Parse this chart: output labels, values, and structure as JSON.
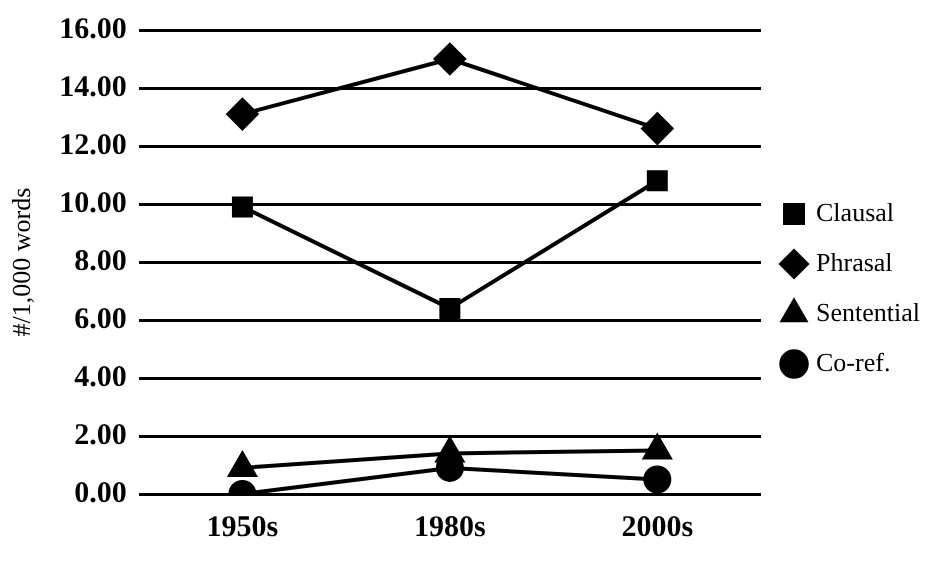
{
  "chart_data": {
    "type": "line",
    "ylabel": "#/1,000 words",
    "categories": [
      "1950s",
      "1980s",
      "2000s"
    ],
    "series": [
      {
        "name": "Clausal",
        "color": "#000000",
        "marker": "square",
        "values": [
          9.9,
          6.4,
          10.8
        ]
      },
      {
        "name": "Phrasal",
        "color": "#000000",
        "marker": "diamond",
        "values": [
          13.1,
          15.0,
          12.6
        ]
      },
      {
        "name": "Sentential",
        "color": "#000000",
        "marker": "triangle",
        "values": [
          0.9,
          1.4,
          1.5
        ]
      },
      {
        "name": "Co-ref.",
        "color": "#000000",
        "marker": "circle",
        "values": [
          0.0,
          0.9,
          0.5
        ]
      }
    ],
    "ylim": [
      0,
      16
    ],
    "yticks": [
      {
        "value": 0,
        "label": "0.00"
      },
      {
        "value": 2,
        "label": "2.00"
      },
      {
        "value": 4,
        "label": "4.00"
      },
      {
        "value": 6,
        "label": "6.00"
      },
      {
        "value": 8,
        "label": "8.00"
      },
      {
        "value": 10,
        "label": "10.00"
      },
      {
        "value": 12,
        "label": "12.00"
      },
      {
        "value": 14,
        "label": "14.00"
      },
      {
        "value": 16,
        "label": "16.00"
      }
    ],
    "grid": "y",
    "legend": "right",
    "line_style": "solid"
  }
}
